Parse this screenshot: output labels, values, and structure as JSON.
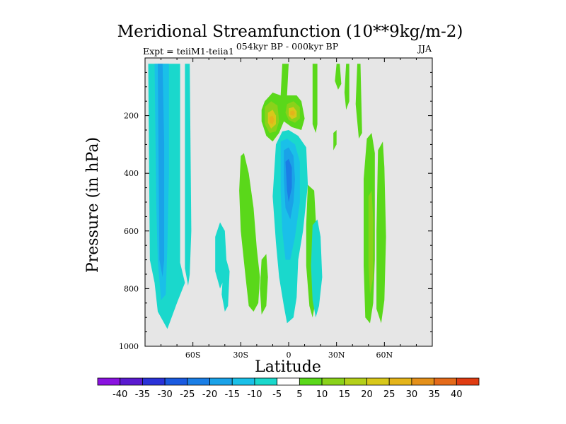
{
  "chart_data": {
    "type": "heatmap",
    "title": "Meridional Streamfunction (10**9kg/m-2)",
    "left_string": "Expt = teiiM1-teiia1",
    "center_string": "054kyr BP - 000kyr BP",
    "right_string": "JJA",
    "xlabel": "Latitude",
    "ylabel": "Pressure (in hPa)",
    "x_ticks": [
      {
        "value": -60,
        "label": "60S"
      },
      {
        "value": -30,
        "label": "30S"
      },
      {
        "value": 0,
        "label": "0"
      },
      {
        "value": 30,
        "label": "30N"
      },
      {
        "value": 60,
        "label": "60N"
      }
    ],
    "y_ticks": [
      {
        "value": 200,
        "label": "200"
      },
      {
        "value": 400,
        "label": "400"
      },
      {
        "value": 600,
        "label": "600"
      },
      {
        "value": 800,
        "label": "800"
      },
      {
        "value": 1000,
        "label": "1000"
      }
    ],
    "xlim": [
      -90,
      90
    ],
    "ylim": [
      1000,
      0
    ],
    "y_reversed": true,
    "missing_color": "#e6e6e6",
    "colorbar": {
      "labels": [
        "-40",
        "-35",
        "-30",
        "-25",
        "-20",
        "-15",
        "-10",
        "-5",
        "5",
        "10",
        "15",
        "20",
        "25",
        "30",
        "35",
        "40"
      ],
      "colors": [
        "#8a12e0",
        "#5a1ad0",
        "#2a32d8",
        "#1a5ae0",
        "#1a7ee6",
        "#1aa2e8",
        "#1ac0e8",
        "#1ad8cc",
        "#ffffff",
        "#5ad81a",
        "#8ad21a",
        "#b4d01a",
        "#d8c81a",
        "#e4b41a",
        "#e4901a",
        "#e46a1a",
        "#e03c12"
      ]
    },
    "regions": [
      {
        "id": "sh-cell-outer",
        "level": -10,
        "color": "#1ad8cc",
        "polygon": [
          [
            -88,
            20
          ],
          [
            -68,
            20
          ],
          [
            -68,
            710
          ],
          [
            -65,
            780
          ],
          [
            -70,
            850
          ],
          [
            -76,
            940
          ],
          [
            -82,
            880
          ],
          [
            -84,
            780
          ],
          [
            -87,
            700
          ]
        ]
      },
      {
        "id": "sh-cell-outer-edge",
        "level": -10,
        "color": "#1ad8cc",
        "polygon": [
          [
            -65,
            20
          ],
          [
            -62,
            20
          ],
          [
            -61,
            600
          ],
          [
            -62,
            750
          ],
          [
            -63,
            790
          ],
          [
            -65,
            730
          ]
        ]
      },
      {
        "id": "sh-cell-core",
        "level": -15,
        "color": "#1ac0e8",
        "polygon": [
          [
            -84,
            20
          ],
          [
            -75,
            20
          ],
          [
            -75,
            400
          ],
          [
            -76,
            650
          ],
          [
            -77,
            820
          ],
          [
            -80,
            840
          ],
          [
            -82,
            700
          ],
          [
            -83,
            500
          ]
        ]
      },
      {
        "id": "sh-cell-inner",
        "level": -20,
        "color": "#1aa2e8",
        "polygon": [
          [
            -82,
            20
          ],
          [
            -79,
            20
          ],
          [
            -78,
            300
          ],
          [
            -78,
            700
          ],
          [
            -79,
            760
          ],
          [
            -81,
            700
          ]
        ]
      },
      {
        "id": "sh-midlat-blob",
        "level": -10,
        "color": "#1ad8cc",
        "polygon": [
          [
            -39,
            700
          ],
          [
            -37,
            740
          ],
          [
            -38,
            860
          ],
          [
            -40,
            880
          ],
          [
            -42,
            820
          ],
          [
            -41,
            740
          ]
        ]
      },
      {
        "id": "neg-lowlevel-left",
        "level": -10,
        "color": "#1ad8cc",
        "polygon": [
          [
            -43,
            570
          ],
          [
            -40,
            600
          ],
          [
            -39,
            700
          ],
          [
            -40,
            760
          ],
          [
            -43,
            800
          ],
          [
            -46,
            740
          ],
          [
            -46,
            620
          ]
        ]
      },
      {
        "id": "green-rising-left",
        "level": 5,
        "color": "#5ad81a",
        "polygon": [
          [
            -30,
            340
          ],
          [
            -28,
            330
          ],
          [
            -25,
            400
          ],
          [
            -22,
            520
          ],
          [
            -20,
            660
          ],
          [
            -18,
            760
          ],
          [
            -19,
            850
          ],
          [
            -22,
            880
          ],
          [
            -25,
            860
          ],
          [
            -27,
            760
          ],
          [
            -30,
            600
          ],
          [
            -31,
            460
          ]
        ]
      },
      {
        "id": "green-low-leftmid",
        "level": 5,
        "color": "#5ad81a",
        "polygon": [
          [
            -17,
            700
          ],
          [
            -14,
            680
          ],
          [
            -13,
            760
          ],
          [
            -14,
            860
          ],
          [
            -17,
            890
          ],
          [
            -18,
            800
          ]
        ]
      },
      {
        "id": "green-right-lower",
        "level": 5,
        "color": "#5ad81a",
        "polygon": [
          [
            12,
            440
          ],
          [
            16,
            460
          ],
          [
            17,
            560
          ],
          [
            18,
            700
          ],
          [
            17,
            840
          ],
          [
            15,
            900
          ],
          [
            13,
            860
          ],
          [
            11,
            720
          ],
          [
            11,
            580
          ]
        ]
      },
      {
        "id": "upper-green-plume",
        "level": 5,
        "color": "#5ad81a",
        "polygon": [
          [
            -15,
            150
          ],
          [
            -10,
            120
          ],
          [
            -5,
            130
          ],
          [
            -4,
            20
          ],
          [
            0,
            20
          ],
          [
            -1,
            130
          ],
          [
            5,
            130
          ],
          [
            8,
            150
          ],
          [
            10,
            210
          ],
          [
            8,
            250
          ],
          [
            2,
            240
          ],
          [
            -3,
            220
          ],
          [
            -6,
            260
          ],
          [
            -10,
            290
          ],
          [
            -14,
            270
          ],
          [
            -17,
            220
          ],
          [
            -17,
            180
          ]
        ]
      },
      {
        "id": "upper-yellow-left",
        "level": 10,
        "color": "#8ad21a",
        "polygon": [
          [
            -15,
            170
          ],
          [
            -11,
            150
          ],
          [
            -7,
            165
          ],
          [
            -6,
            220
          ],
          [
            -8,
            255
          ],
          [
            -12,
            260
          ],
          [
            -15,
            230
          ]
        ]
      },
      {
        "id": "upper-yellow-right",
        "level": 10,
        "color": "#8ad21a",
        "polygon": [
          [
            -1,
            160
          ],
          [
            3,
            150
          ],
          [
            7,
            170
          ],
          [
            7,
            210
          ],
          [
            4,
            225
          ],
          [
            0,
            215
          ],
          [
            -2,
            190
          ]
        ]
      },
      {
        "id": "upper-orange-left",
        "level": 15,
        "color": "#d8c81a",
        "polygon": [
          [
            -13,
            190
          ],
          [
            -10,
            180
          ],
          [
            -8,
            200
          ],
          [
            -8,
            230
          ],
          [
            -11,
            245
          ],
          [
            -13,
            225
          ]
        ]
      },
      {
        "id": "upper-orange-right",
        "level": 15,
        "color": "#d8c81a",
        "polygon": [
          [
            0,
            175
          ],
          [
            3,
            170
          ],
          [
            5,
            185
          ],
          [
            5,
            205
          ],
          [
            2,
            212
          ],
          [
            0,
            200
          ]
        ]
      },
      {
        "id": "upper-core-left",
        "level": 20,
        "color": "#e4b41a",
        "polygon": [
          [
            -12,
            205
          ],
          [
            -10,
            200
          ],
          [
            -9,
            215
          ],
          [
            -10,
            230
          ],
          [
            -12,
            225
          ]
        ]
      },
      {
        "id": "upper-core-right",
        "level": 20,
        "color": "#e4b41a",
        "polygon": [
          [
            1,
            185
          ],
          [
            3,
            182
          ],
          [
            4,
            192
          ],
          [
            3,
            200
          ],
          [
            1,
            198
          ]
        ]
      },
      {
        "id": "eq-neg-outer",
        "level": -5,
        "color": "#1ad8cc",
        "polygon": [
          [
            -8,
            300
          ],
          [
            -4,
            255
          ],
          [
            0,
            250
          ],
          [
            6,
            270
          ],
          [
            11,
            310
          ],
          [
            12,
            440
          ],
          [
            9,
            600
          ],
          [
            6,
            700
          ],
          [
            5,
            830
          ],
          [
            3,
            900
          ],
          [
            -1,
            920
          ],
          [
            -3,
            860
          ],
          [
            -6,
            760
          ],
          [
            -8,
            640
          ],
          [
            -10,
            480
          ]
        ]
      },
      {
        "id": "eq-neg-mid",
        "level": -15,
        "color": "#1ac0e8",
        "polygon": [
          [
            -5,
            290
          ],
          [
            -1,
            280
          ],
          [
            4,
            300
          ],
          [
            7,
            360
          ],
          [
            7,
            500
          ],
          [
            4,
            620
          ],
          [
            1,
            700
          ],
          [
            -2,
            700
          ],
          [
            -4,
            600
          ],
          [
            -5,
            460
          ]
        ]
      },
      {
        "id": "eq-neg-inner",
        "level": -20,
        "color": "#1aa2e8",
        "polygon": [
          [
            -3,
            320
          ],
          [
            0,
            310
          ],
          [
            3,
            340
          ],
          [
            4,
            420
          ],
          [
            3,
            500
          ],
          [
            1,
            560
          ],
          [
            -2,
            520
          ],
          [
            -3,
            420
          ]
        ]
      },
      {
        "id": "eq-neg-core",
        "level": -25,
        "color": "#1a7ee6",
        "polygon": [
          [
            -2,
            360
          ],
          [
            0,
            350
          ],
          [
            2,
            380
          ],
          [
            2,
            450
          ],
          [
            0,
            500
          ],
          [
            -1,
            460
          ]
        ]
      },
      {
        "id": "eq-low-right",
        "level": -10,
        "color": "#1ad8cc",
        "polygon": [
          [
            15,
            580
          ],
          [
            18,
            560
          ],
          [
            20,
            620
          ],
          [
            21,
            760
          ],
          [
            19,
            860
          ],
          [
            17,
            900
          ],
          [
            15,
            840
          ],
          [
            14,
            720
          ]
        ]
      },
      {
        "id": "green-top-right-1",
        "level": 5,
        "color": "#5ad81a",
        "polygon": [
          [
            15,
            20
          ],
          [
            18,
            20
          ],
          [
            18,
            230
          ],
          [
            17,
            260
          ],
          [
            15,
            230
          ]
        ]
      },
      {
        "id": "green-top-right-2",
        "level": 5,
        "color": "#5ad81a",
        "polygon": [
          [
            30,
            20
          ],
          [
            32,
            20
          ],
          [
            33,
            90
          ],
          [
            31,
            110
          ],
          [
            29,
            80
          ]
        ]
      },
      {
        "id": "green-top-right-3",
        "level": 5,
        "color": "#5ad81a",
        "polygon": [
          [
            36,
            20
          ],
          [
            38,
            20
          ],
          [
            38,
            150
          ],
          [
            36,
            180
          ],
          [
            35,
            120
          ]
        ]
      },
      {
        "id": "green-top-right-4",
        "level": 5,
        "color": "#5ad81a",
        "polygon": [
          [
            43,
            20
          ],
          [
            45,
            20
          ],
          [
            46,
            260
          ],
          [
            44,
            280
          ],
          [
            42,
            160
          ]
        ]
      },
      {
        "id": "green-upper-right-thin",
        "level": 5,
        "color": "#5ad81a",
        "polygon": [
          [
            28,
            260
          ],
          [
            30,
            250
          ],
          [
            30,
            300
          ],
          [
            28,
            320
          ]
        ]
      },
      {
        "id": "nh-band-left",
        "level": 5,
        "color": "#5ad81a",
        "polygon": [
          [
            49,
            280
          ],
          [
            52,
            260
          ],
          [
            54,
            330
          ],
          [
            54,
            700
          ],
          [
            53,
            850
          ],
          [
            51,
            920
          ],
          [
            48,
            900
          ],
          [
            47,
            720
          ],
          [
            47,
            420
          ]
        ]
      },
      {
        "id": "nh-band-core",
        "level": 10,
        "color": "#8ad21a",
        "polygon": [
          [
            50,
            480
          ],
          [
            52,
            460
          ],
          [
            53,
            560
          ],
          [
            53,
            760
          ],
          [
            51,
            820
          ],
          [
            50,
            720
          ]
        ]
      },
      {
        "id": "nh-band-right",
        "level": 5,
        "color": "#5ad81a",
        "polygon": [
          [
            56,
            320
          ],
          [
            59,
            290
          ],
          [
            60,
            380
          ],
          [
            61,
            620
          ],
          [
            60,
            840
          ],
          [
            58,
            920
          ],
          [
            55,
            870
          ],
          [
            55,
            600
          ]
        ]
      }
    ]
  }
}
